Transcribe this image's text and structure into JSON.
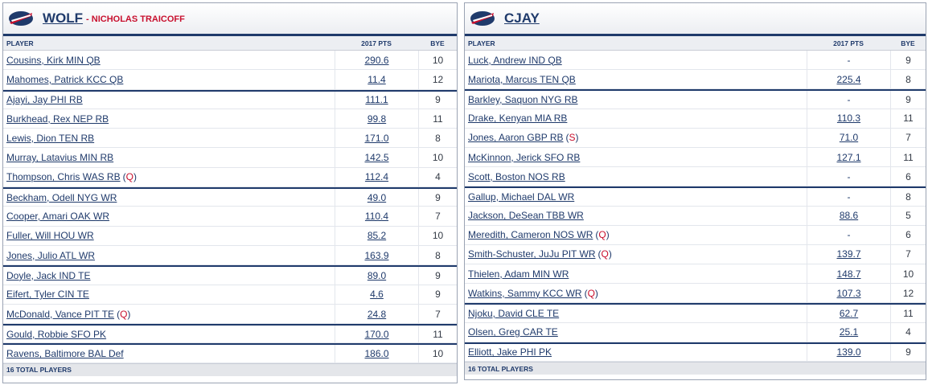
{
  "teams": [
    {
      "name": "WOLF",
      "owner": "- NICHOLAS TRAICOFF",
      "headers": {
        "player": "PLAYER",
        "pts": "2017 PTS",
        "bye": "BYE"
      },
      "footer": "16 TOTAL PLAYERS",
      "rows": [
        {
          "player": "Cousins, Kirk MIN QB",
          "pts": "290.6",
          "bye": "10",
          "status": "",
          "group_start": true
        },
        {
          "player": "Mahomes, Patrick KCC QB",
          "pts": "11.4",
          "bye": "12",
          "status": "",
          "group_start": false
        },
        {
          "player": "Ajayi, Jay PHI RB",
          "pts": "111.1",
          "bye": "9",
          "status": "",
          "group_start": true
        },
        {
          "player": "Burkhead, Rex NEP RB",
          "pts": "99.8",
          "bye": "11",
          "status": "",
          "group_start": false
        },
        {
          "player": "Lewis, Dion TEN RB",
          "pts": "171.0",
          "bye": "8",
          "status": "",
          "group_start": false
        },
        {
          "player": "Murray, Latavius MIN RB",
          "pts": "142.5",
          "bye": "10",
          "status": "",
          "group_start": false
        },
        {
          "player": "Thompson, Chris WAS RB",
          "pts": "112.4",
          "bye": "4",
          "status": "Q",
          "group_start": false
        },
        {
          "player": "Beckham, Odell NYG WR",
          "pts": "49.0",
          "bye": "9",
          "status": "",
          "group_start": true
        },
        {
          "player": "Cooper, Amari OAK WR",
          "pts": "110.4",
          "bye": "7",
          "status": "",
          "group_start": false
        },
        {
          "player": "Fuller, Will HOU WR",
          "pts": "85.2",
          "bye": "10",
          "status": "",
          "group_start": false
        },
        {
          "player": "Jones, Julio ATL WR",
          "pts": "163.9",
          "bye": "8",
          "status": "",
          "group_start": false
        },
        {
          "player": "Doyle, Jack IND TE",
          "pts": "89.0",
          "bye": "9",
          "status": "",
          "group_start": true
        },
        {
          "player": "Eifert, Tyler CIN TE",
          "pts": "4.6",
          "bye": "9",
          "status": "",
          "group_start": false
        },
        {
          "player": "McDonald, Vance PIT TE",
          "pts": "24.8",
          "bye": "7",
          "status": "Q",
          "group_start": false
        },
        {
          "player": "Gould, Robbie SFO PK",
          "pts": "170.0",
          "bye": "11",
          "status": "",
          "group_start": true
        },
        {
          "player": "Ravens, Baltimore BAL Def",
          "pts": "186.0",
          "bye": "10",
          "status": "",
          "group_start": true
        }
      ]
    },
    {
      "name": "CJAY",
      "owner": "",
      "headers": {
        "player": "PLAYER",
        "pts": "2017 PTS",
        "bye": "BYE"
      },
      "footer": "16 TOTAL PLAYERS",
      "rows": [
        {
          "player": "Luck, Andrew IND QB",
          "pts": "-",
          "bye": "9",
          "status": "",
          "group_start": true
        },
        {
          "player": "Mariota, Marcus TEN QB",
          "pts": "225.4",
          "bye": "8",
          "status": "",
          "group_start": false
        },
        {
          "player": "Barkley, Saquon NYG RB",
          "pts": "-",
          "bye": "9",
          "status": "",
          "group_start": true
        },
        {
          "player": "Drake, Kenyan MIA RB",
          "pts": "110.3",
          "bye": "11",
          "status": "",
          "group_start": false
        },
        {
          "player": "Jones, Aaron GBP RB",
          "pts": "71.0",
          "bye": "7",
          "status": "S",
          "group_start": false
        },
        {
          "player": "McKinnon, Jerick SFO RB",
          "pts": "127.1",
          "bye": "11",
          "status": "",
          "group_start": false
        },
        {
          "player": "Scott, Boston NOS RB",
          "pts": "-",
          "bye": "6",
          "status": "",
          "group_start": false
        },
        {
          "player": "Gallup, Michael DAL WR",
          "pts": "-",
          "bye": "8",
          "status": "",
          "group_start": true
        },
        {
          "player": "Jackson, DeSean TBB WR",
          "pts": "88.6",
          "bye": "5",
          "status": "",
          "group_start": false
        },
        {
          "player": "Meredith, Cameron NOS WR",
          "pts": "-",
          "bye": "6",
          "status": "Q",
          "group_start": false
        },
        {
          "player": "Smith-Schuster, JuJu PIT WR",
          "pts": "139.7",
          "bye": "7",
          "status": "Q",
          "group_start": false
        },
        {
          "player": "Thielen, Adam MIN WR",
          "pts": "148.7",
          "bye": "10",
          "status": "",
          "group_start": false
        },
        {
          "player": "Watkins, Sammy KCC WR",
          "pts": "107.3",
          "bye": "12",
          "status": "Q",
          "group_start": false
        },
        {
          "player": "Njoku, David CLE TE",
          "pts": "62.7",
          "bye": "11",
          "status": "",
          "group_start": true
        },
        {
          "player": "Olsen, Greg CAR TE",
          "pts": "25.1",
          "bye": "4",
          "status": "",
          "group_start": false
        },
        {
          "player": "Elliott, Jake PHI PK",
          "pts": "139.0",
          "bye": "9",
          "status": "",
          "group_start": true
        }
      ]
    }
  ]
}
